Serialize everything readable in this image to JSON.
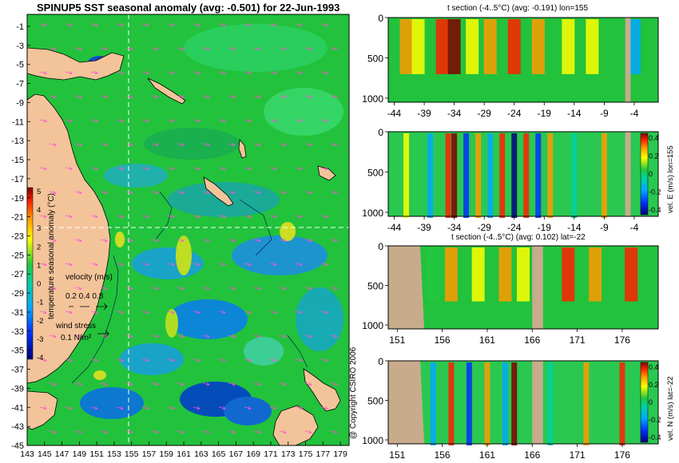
{
  "main": {
    "title": "SPINUP5 SST seasonal anomaly (avg: -0.501) for 22-Jun-1993",
    "copyright": "@ Copyright CSIRO 2006"
  },
  "map": {
    "lat_ticks": [
      "-1",
      "-3",
      "-5",
      "-7",
      "-9",
      "-11",
      "-13",
      "-15",
      "-17",
      "-19",
      "-21",
      "-23",
      "-25",
      "-27",
      "-29",
      "-31",
      "-33",
      "-35",
      "-37",
      "-39",
      "-41",
      "-43",
      "-45"
    ],
    "lon_ticks": [
      "143",
      "145",
      "147",
      "149",
      "151",
      "153",
      "155",
      "157",
      "159",
      "161",
      "163",
      "165",
      "167",
      "169",
      "171",
      "173",
      "175",
      "177",
      "179"
    ],
    "colorbar_ticks": [
      "5",
      "4",
      "3",
      "2",
      "1",
      "0",
      "-1",
      "-2",
      "-3",
      "-4"
    ],
    "colorbar_label": "temperature seasonal anomaly (°C)",
    "velocity_label": "velocity (m/s)",
    "velocity_scale": "0.2 0.4 0.8",
    "wind_label": "wind stress",
    "wind_scale": "0.1 N/m²",
    "colors": {
      "ocean": "#1fc43a",
      "land": "#f3c49a",
      "section_line": "#ffffff",
      "wind_arrows": "#ff4fd8"
    }
  },
  "panels": [
    {
      "id": "temp-lon155",
      "title": "t section (-4..5°C) (avg: -0.191) lon=155",
      "x_ticks": [
        "-44",
        "-39",
        "-34",
        "-29",
        "-24",
        "-19",
        "-14",
        "-9",
        "-4"
      ],
      "y_ticks": [
        "0",
        "500",
        "1000"
      ],
      "colorbar": null
    },
    {
      "id": "vel-lon155",
      "title": "",
      "x_ticks": [
        "-44",
        "-39",
        "-34",
        "-29",
        "-24",
        "-19",
        "-14",
        "-9",
        "-4"
      ],
      "y_ticks": [
        "0",
        "500",
        "1000"
      ],
      "colorbar": {
        "label": "vel. E (m/s) lon=155",
        "ticks": [
          "0.4",
          "0.2",
          "0",
          "-0.2",
          "-0.4"
        ]
      }
    },
    {
      "id": "temp-lat22",
      "title": "t section (-4..5°C) (avg: 0.102) lat=-22",
      "x_ticks": [
        "151",
        "156",
        "161",
        "166",
        "171",
        "176"
      ],
      "y_ticks": [
        "0",
        "500",
        "1000"
      ],
      "colorbar": null
    },
    {
      "id": "vel-lat22",
      "title": "",
      "x_ticks": [
        "151",
        "156",
        "161",
        "166",
        "171",
        "176"
      ],
      "y_ticks": [
        "0",
        "500",
        "1000"
      ],
      "colorbar": {
        "label": "vel. N (m/s) lat=-22",
        "ticks": [
          "0.4",
          "0.2",
          "0",
          "-0.2",
          "-0.4"
        ]
      }
    }
  ],
  "chart_data": [
    {
      "type": "heatmap",
      "title": "SPINUP5 SST seasonal anomaly (avg: -0.501) for 22-Jun-1993",
      "xlim": [
        143,
        180
      ],
      "ylim": [
        -45,
        0
      ],
      "colorbar_range": [
        -4,
        5
      ],
      "average": -0.501,
      "date": "22-Jun-1993",
      "section_lon": 155,
      "section_lat": -22
    },
    {
      "type": "heatmap",
      "title": "t section (-4..5°C) (avg: -0.191) lon=155",
      "xlim": [
        -45,
        0
      ],
      "ylim": [
        1050,
        0
      ],
      "value_range": [
        -4,
        5
      ],
      "average": -0.191,
      "surface_anomalies": [
        {
          "x": -42,
          "value": 2.5
        },
        {
          "x": -40,
          "value": 1.0
        },
        {
          "x": -36,
          "value": 3.5
        },
        {
          "x": -34,
          "value": 4.0
        },
        {
          "x": -31,
          "value": 1.5
        },
        {
          "x": -28,
          "value": 2.0
        },
        {
          "x": -24,
          "value": 3.0
        },
        {
          "x": -20,
          "value": 2.5
        },
        {
          "x": -15,
          "value": 1.5
        },
        {
          "x": -11,
          "value": 1.0
        },
        {
          "x": -4,
          "value": -1.5
        }
      ]
    },
    {
      "type": "heatmap",
      "title": "",
      "colorbar_label": "vel. E (m/s) lon=155",
      "xlim": [
        -45,
        0
      ],
      "ylim": [
        1050,
        0
      ],
      "value_range": [
        -0.4,
        0.4
      ],
      "column_velocities": [
        {
          "x": -42,
          "value": 0.1
        },
        {
          "x": -38,
          "value": -0.2
        },
        {
          "x": -35,
          "value": 0.3
        },
        {
          "x": -34,
          "value": 0.4
        },
        {
          "x": -32,
          "value": -0.3
        },
        {
          "x": -30,
          "value": 0.2
        },
        {
          "x": -28,
          "value": -0.2
        },
        {
          "x": -26,
          "value": 0.3
        },
        {
          "x": -24,
          "value": -0.4
        },
        {
          "x": -22,
          "value": 0.3
        },
        {
          "x": -20,
          "value": -0.3
        },
        {
          "x": -18,
          "value": 0.2
        },
        {
          "x": -14,
          "value": -0.1
        },
        {
          "x": -9,
          "value": 0.2
        }
      ]
    },
    {
      "type": "heatmap",
      "title": "t section (-4..5°C) (avg: 0.102) lat=-22",
      "xlim": [
        150,
        180
      ],
      "ylim": [
        1050,
        0
      ],
      "value_range": [
        -4,
        5
      ],
      "average": 0.102,
      "surface_anomalies": [
        {
          "x": 155,
          "value": 0.5
        },
        {
          "x": 157,
          "value": 2.5
        },
        {
          "x": 160,
          "value": 1.5
        },
        {
          "x": 163,
          "value": 2.0
        },
        {
          "x": 165,
          "value": 1.0
        },
        {
          "x": 170,
          "value": 3.0
        },
        {
          "x": 173,
          "value": 2.0
        },
        {
          "x": 177,
          "value": 3.5
        }
      ]
    },
    {
      "type": "heatmap",
      "title": "",
      "colorbar_label": "vel. N (m/s) lat=-22",
      "xlim": [
        150,
        180
      ],
      "ylim": [
        1050,
        0
      ],
      "value_range": [
        -0.4,
        0.4
      ],
      "column_velocities": [
        {
          "x": 155,
          "value": -0.2
        },
        {
          "x": 157,
          "value": 0.3
        },
        {
          "x": 159,
          "value": -0.3
        },
        {
          "x": 161,
          "value": 0.2
        },
        {
          "x": 163,
          "value": -0.2
        },
        {
          "x": 164,
          "value": 0.4
        },
        {
          "x": 168,
          "value": -0.1
        },
        {
          "x": 172,
          "value": 0.2
        },
        {
          "x": 176,
          "value": 0.3
        }
      ]
    }
  ]
}
